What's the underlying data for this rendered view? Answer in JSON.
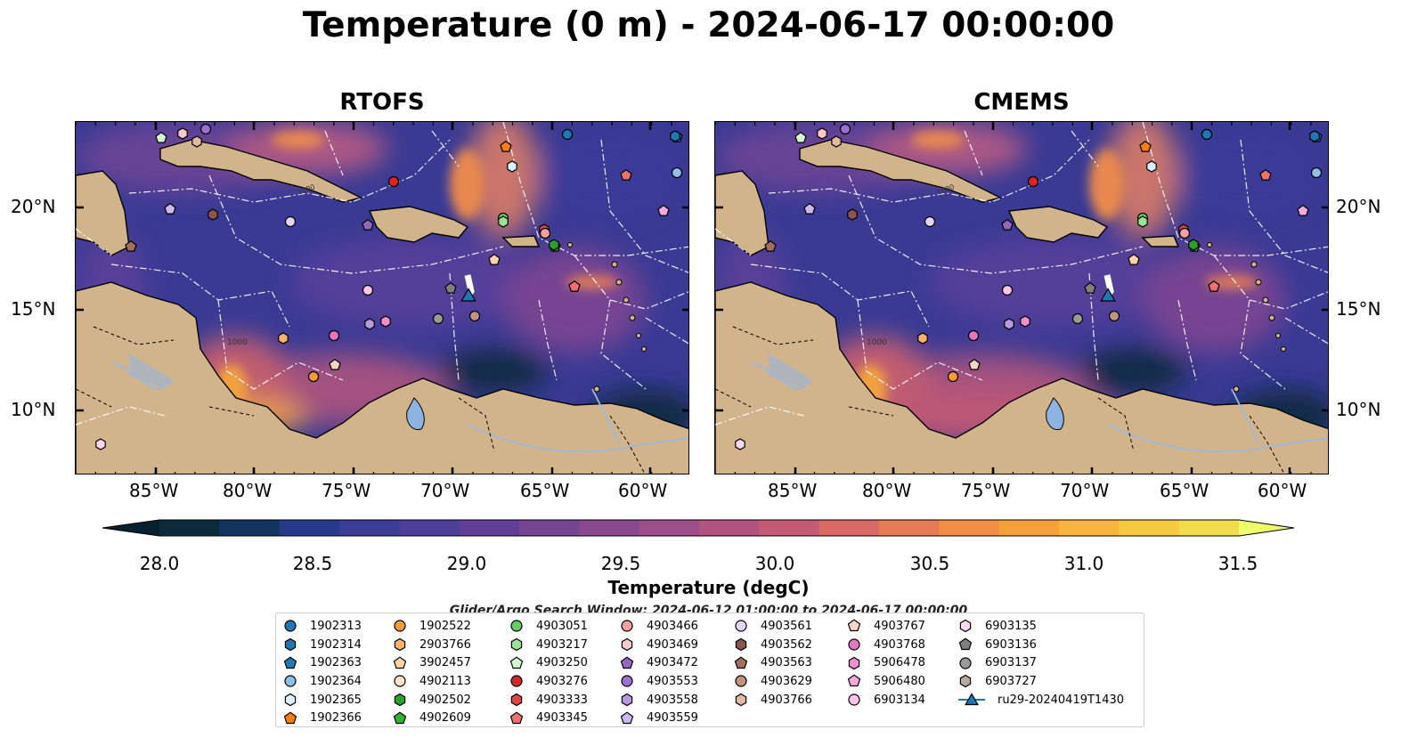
{
  "figure": {
    "title": "Temperature (0 m) - 2024-06-17 00:00:00",
    "panels": [
      {
        "title": "RTOFS"
      },
      {
        "title": "CMEMS"
      }
    ],
    "lon_labels": [
      "85°W",
      "80°W",
      "75°W",
      "70°W",
      "65°W",
      "60°W"
    ],
    "lat_labels": [
      "20°N",
      "15°N",
      "10°N"
    ],
    "contour_label": "1000",
    "colorbar": {
      "label": "Temperature (degC)",
      "ticks": [
        "28.0",
        "28.5",
        "29.0",
        "29.5",
        "30.0",
        "30.5",
        "31.0",
        "31.5"
      ],
      "colors": [
        "#0b2a3c",
        "#13345d",
        "#263a8a",
        "#3b3d96",
        "#4d3f98",
        "#613f96",
        "#754592",
        "#89498f",
        "#9c4e89",
        "#b0547f",
        "#c45a75",
        "#d86a66",
        "#e47c55",
        "#ef8e44",
        "#f5a03a",
        "#f8b43c",
        "#f6c943",
        "#f0dd4e"
      ],
      "under_color": "#062030",
      "over_color": "#eefc6a"
    },
    "search_window": "Glider/Argo Search Window: 2024-06-12 01:00:00 to 2024-06-17 00:00:00",
    "map_colors": {
      "ocean_deep": "#3a3a94",
      "land": "#d2b48c",
      "lake": "#8fb3e0",
      "river": "#9db8d8"
    }
  },
  "legend": {
    "columns": [
      [
        {
          "label": "1902313",
          "marker": "circle",
          "color": "#1f77b4"
        },
        {
          "label": "1902314",
          "marker": "hexagon",
          "color": "#1f77b4"
        },
        {
          "label": "1902363",
          "marker": "pentagon",
          "color": "#1f77b4"
        },
        {
          "label": "1902364",
          "marker": "circle",
          "color": "#8ec0ea"
        },
        {
          "label": "1902365",
          "marker": "hexagon",
          "color": "#dcefff"
        },
        {
          "label": "1902366",
          "marker": "pentagon",
          "color": "#ff7f0e"
        }
      ],
      [
        {
          "label": "1902522",
          "marker": "circle",
          "color": "#ff9a3c"
        },
        {
          "label": "2903766",
          "marker": "hexagon",
          "color": "#ffb266"
        },
        {
          "label": "3902457",
          "marker": "pentagon",
          "color": "#ffd4a8"
        },
        {
          "label": "4902113",
          "marker": "circle",
          "color": "#ffe3cc"
        },
        {
          "label": "4902502",
          "marker": "hexagon",
          "color": "#2ca02c"
        },
        {
          "label": "4902609",
          "marker": "pentagon",
          "color": "#38b038"
        }
      ],
      [
        {
          "label": "4903051",
          "marker": "circle",
          "color": "#66cc66"
        },
        {
          "label": "4903217",
          "marker": "hexagon",
          "color": "#98e498"
        },
        {
          "label": "4903250",
          "marker": "pentagon",
          "color": "#d4f7d0"
        },
        {
          "label": "4903276",
          "marker": "circle",
          "color": "#d62728"
        },
        {
          "label": "4903333",
          "marker": "hexagon",
          "color": "#e04444"
        },
        {
          "label": "4903345",
          "marker": "pentagon",
          "color": "#f07070"
        }
      ],
      [
        {
          "label": "4903466",
          "marker": "circle",
          "color": "#f4a0a0"
        },
        {
          "label": "4903469",
          "marker": "hexagon",
          "color": "#fbcaca"
        },
        {
          "label": "4903472",
          "marker": "pentagon",
          "color": "#9467bd"
        },
        {
          "label": "4903553",
          "marker": "circle",
          "color": "#9b6ed0"
        },
        {
          "label": "4903558",
          "marker": "hexagon",
          "color": "#b79ae0"
        },
        {
          "label": "4903559",
          "marker": "pentagon",
          "color": "#cdb8ef"
        }
      ],
      [
        {
          "label": "4903561",
          "marker": "circle",
          "color": "#e5d5f5"
        },
        {
          "label": "4903562",
          "marker": "hexagon",
          "color": "#8c564b"
        },
        {
          "label": "4903563",
          "marker": "pentagon",
          "color": "#a0705f"
        },
        {
          "label": "4903629",
          "marker": "circle",
          "color": "#c09480"
        },
        {
          "label": "4903766",
          "marker": "hexagon",
          "color": "#e2b9a5"
        }
      ],
      [
        {
          "label": "4903767",
          "marker": "pentagon",
          "color": "#f5d6c6"
        },
        {
          "label": "4903768",
          "marker": "circle",
          "color": "#e377c2"
        },
        {
          "label": "5906478",
          "marker": "hexagon",
          "color": "#ee8fcf"
        },
        {
          "label": "5906480",
          "marker": "pentagon",
          "color": "#f5a8dc"
        },
        {
          "label": "6903134",
          "marker": "circle",
          "color": "#fbc4e8"
        }
      ],
      [
        {
          "label": "6903135",
          "marker": "hexagon",
          "color": "#fdd8f0"
        },
        {
          "label": "6903136",
          "marker": "pentagon",
          "color": "#7f7f7f"
        },
        {
          "label": "6903137",
          "marker": "circle",
          "color": "#9a9a9a"
        },
        {
          "label": "6903727",
          "marker": "hexagon",
          "color": "#b5aaa0"
        },
        {
          "label": "ru29-20240419T1430",
          "marker": "triangle-line",
          "color": "#1f77b4"
        }
      ]
    ]
  }
}
